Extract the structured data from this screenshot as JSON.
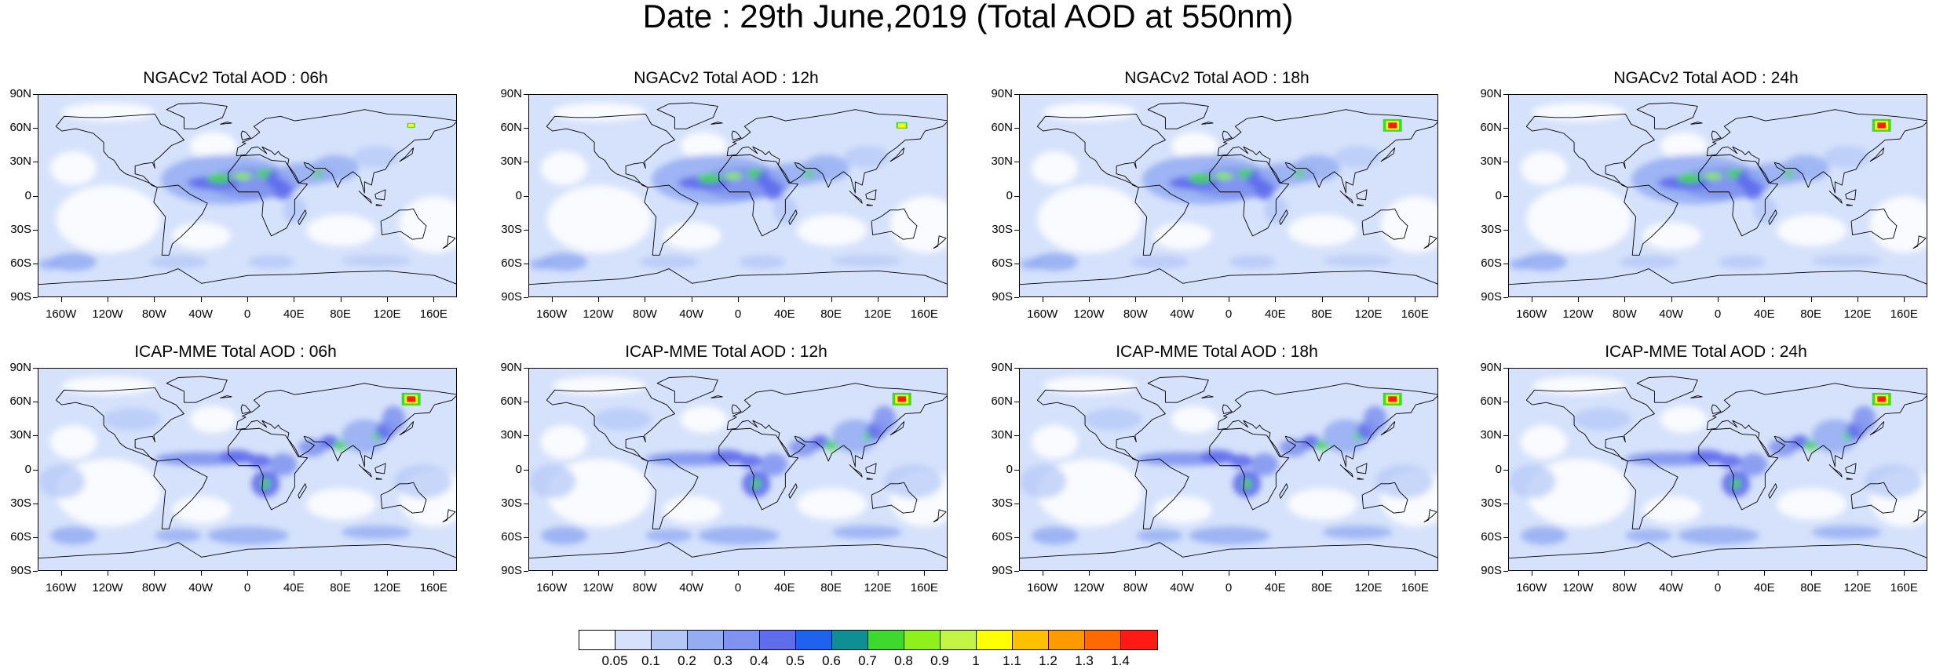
{
  "title": "Date : 29th June,2019 (Total AOD at 550nm)",
  "panels": [
    {
      "title": "NGACv2 Total AOD : 06h",
      "model": "NGACv2",
      "hour": "06h",
      "hotspot": "low"
    },
    {
      "title": "NGACv2 Total AOD : 12h",
      "model": "NGACv2",
      "hour": "12h",
      "hotspot": "mid"
    },
    {
      "title": "NGACv2 Total AOD : 18h",
      "model": "NGACv2",
      "hour": "18h",
      "hotspot": "high"
    },
    {
      "title": "NGACv2 Total AOD : 24h",
      "model": "NGACv2",
      "hour": "24h",
      "hotspot": "high"
    },
    {
      "title": "ICAP-MME Total AOD : 06h",
      "model": "ICAP-MME",
      "hour": "06h",
      "hotspot": "high"
    },
    {
      "title": "ICAP-MME Total AOD : 12h",
      "model": "ICAP-MME",
      "hour": "12h",
      "hotspot": "high"
    },
    {
      "title": "ICAP-MME Total AOD : 18h",
      "model": "ICAP-MME",
      "hour": "18h",
      "hotspot": "high"
    },
    {
      "title": "ICAP-MME Total AOD : 24h",
      "model": "ICAP-MME",
      "hour": "24h",
      "hotspot": "high"
    }
  ],
  "lat_ticks": [
    "90N",
    "60N",
    "30N",
    "0",
    "30S",
    "60S",
    "90S"
  ],
  "lon_ticks": [
    "160W",
    "120W",
    "80W",
    "40W",
    "0",
    "40E",
    "80E",
    "120E",
    "160E"
  ],
  "colorbar": {
    "labels": [
      "0.05",
      "0.1",
      "0.2",
      "0.3",
      "0.4",
      "0.5",
      "0.6",
      "0.7",
      "0.8",
      "0.9",
      "1",
      "1.1",
      "1.2",
      "1.3",
      "1.4"
    ],
    "colors": [
      "#ffffff",
      "#d6e2fb",
      "#b4c8f7",
      "#94adf2",
      "#7e92ef",
      "#5f6cec",
      "#1f62f0",
      "#0e8f94",
      "#3ed92e",
      "#8ef11c",
      "#c3f546",
      "#ffff00",
      "#ffc000",
      "#ff9a00",
      "#ff6a00",
      "#ff1a14"
    ]
  }
}
